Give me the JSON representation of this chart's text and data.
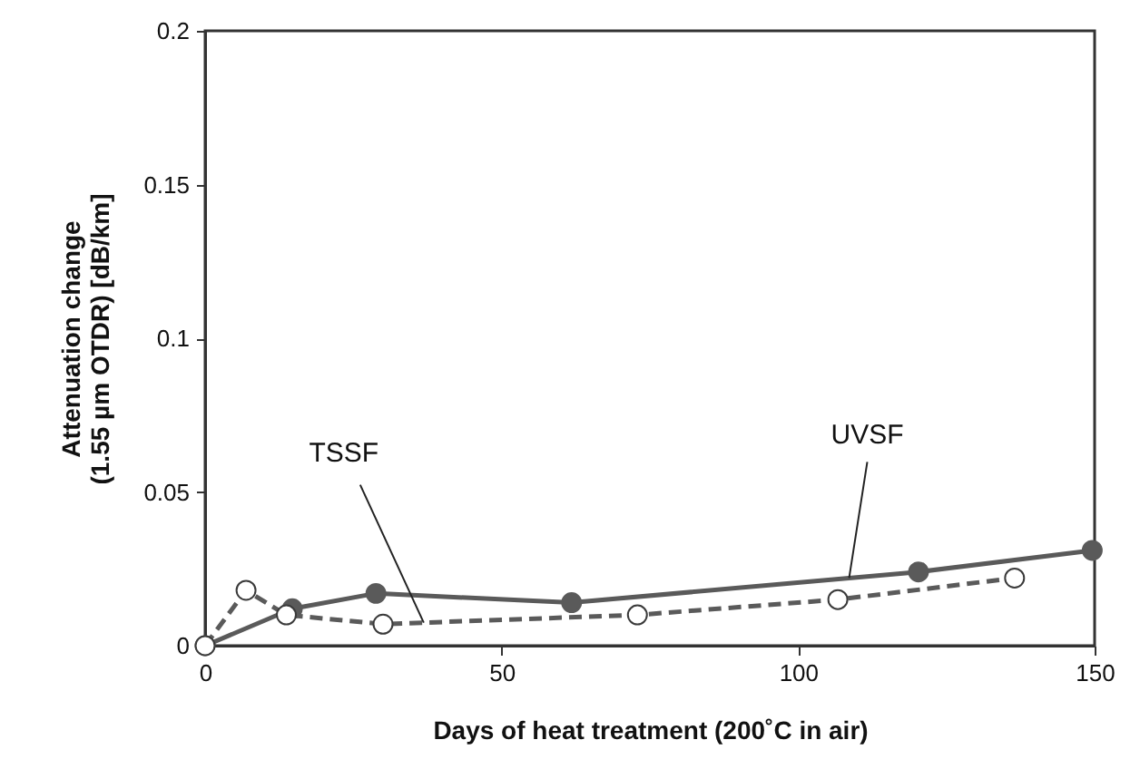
{
  "chart_data": {
    "type": "line",
    "xlabel": "Days of heat treatment (200˚C in air)",
    "ylabel": "Attenuation change\n(1.55 µm OTDR) [dB/km]",
    "xlim": [
      0,
      150
    ],
    "ylim": [
      0,
      0.2
    ],
    "xticks": [
      0,
      50,
      100,
      150
    ],
    "yticks": [
      0,
      0.05,
      0.1,
      0.15,
      0.2
    ],
    "grid": false,
    "marker": "circle",
    "series": [
      {
        "name": "UVSF",
        "color": "#5a5a5a",
        "line_style": "solid",
        "x": [
          0,
          14.7,
          28.8,
          61.8,
          120.3,
          149.6
        ],
        "values": [
          0,
          0.012,
          0.017,
          0.014,
          0.024,
          0.031
        ]
      },
      {
        "name": "TSSF",
        "color": "#5a5a5a",
        "line_style": "dashed",
        "x": [
          0,
          6.9,
          13.7,
          30,
          72.9,
          106.7,
          136.5
        ],
        "values": [
          0,
          0.018,
          0.01,
          0.007,
          0.01,
          0.015,
          0.022
        ]
      }
    ]
  }
}
